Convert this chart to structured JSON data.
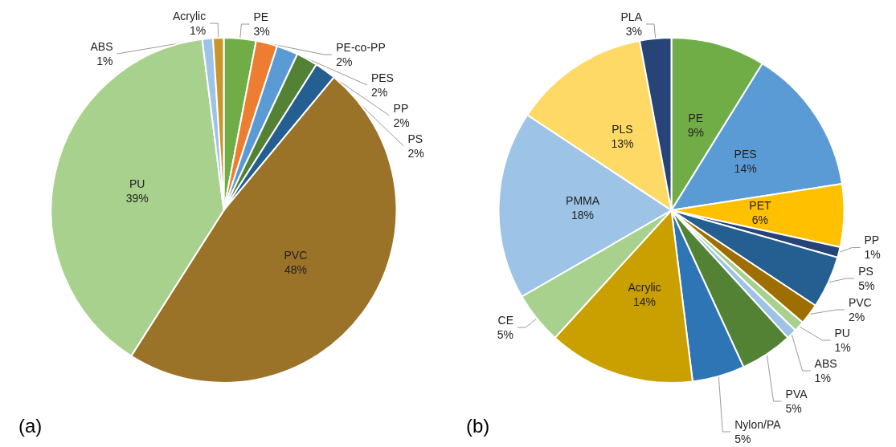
{
  "chart_data": [
    {
      "type": "pie",
      "title": "(a)",
      "legend": false,
      "categories": [
        "PE",
        "PE-co-PP",
        "PES",
        "PP",
        "PS",
        "PVC",
        "PU",
        "ABS",
        "Acrylic"
      ],
      "values": [
        3,
        2,
        2,
        2,
        2,
        48,
        39,
        1,
        1
      ],
      "value_labels": [
        "3%",
        "2%",
        "2%",
        "2%",
        "2%",
        "48%",
        "39%",
        "1%",
        "1%"
      ],
      "colors": [
        "#70ad47",
        "#ed7d31",
        "#5b9bd5",
        "#548235",
        "#255e91",
        "#9a7228",
        "#a9d18e",
        "#9dc3e6",
        "#c9962e"
      ]
    },
    {
      "type": "pie",
      "title": "(b)",
      "legend": false,
      "categories": [
        "PE",
        "PES",
        "PET",
        "PP",
        "PS",
        "PVC",
        "PU",
        "ABS",
        "PVA",
        "Nylon/PA",
        "Acrylic",
        "CE",
        "PMMA",
        "PLS",
        "PLA"
      ],
      "values": [
        9,
        14,
        6,
        1,
        5,
        2,
        1,
        1,
        5,
        5,
        14,
        5,
        18,
        13,
        3
      ],
      "value_labels": [
        "9%",
        "14%",
        "6%",
        "1%",
        "5%",
        "2%",
        "1%",
        "1%",
        "5%",
        "5%",
        "14%",
        "5%",
        "18%",
        "13%",
        "3%"
      ],
      "colors": [
        "#70ad47",
        "#5b9bd5",
        "#ffc000",
        "#264478",
        "#255e91",
        "#9e6f00",
        "#a9d18e",
        "#9dc3e6",
        "#548235",
        "#2e75b6",
        "#c9a000",
        "#a9d18e",
        "#9dc3e6",
        "#ffd966",
        "#264478"
      ]
    }
  ]
}
